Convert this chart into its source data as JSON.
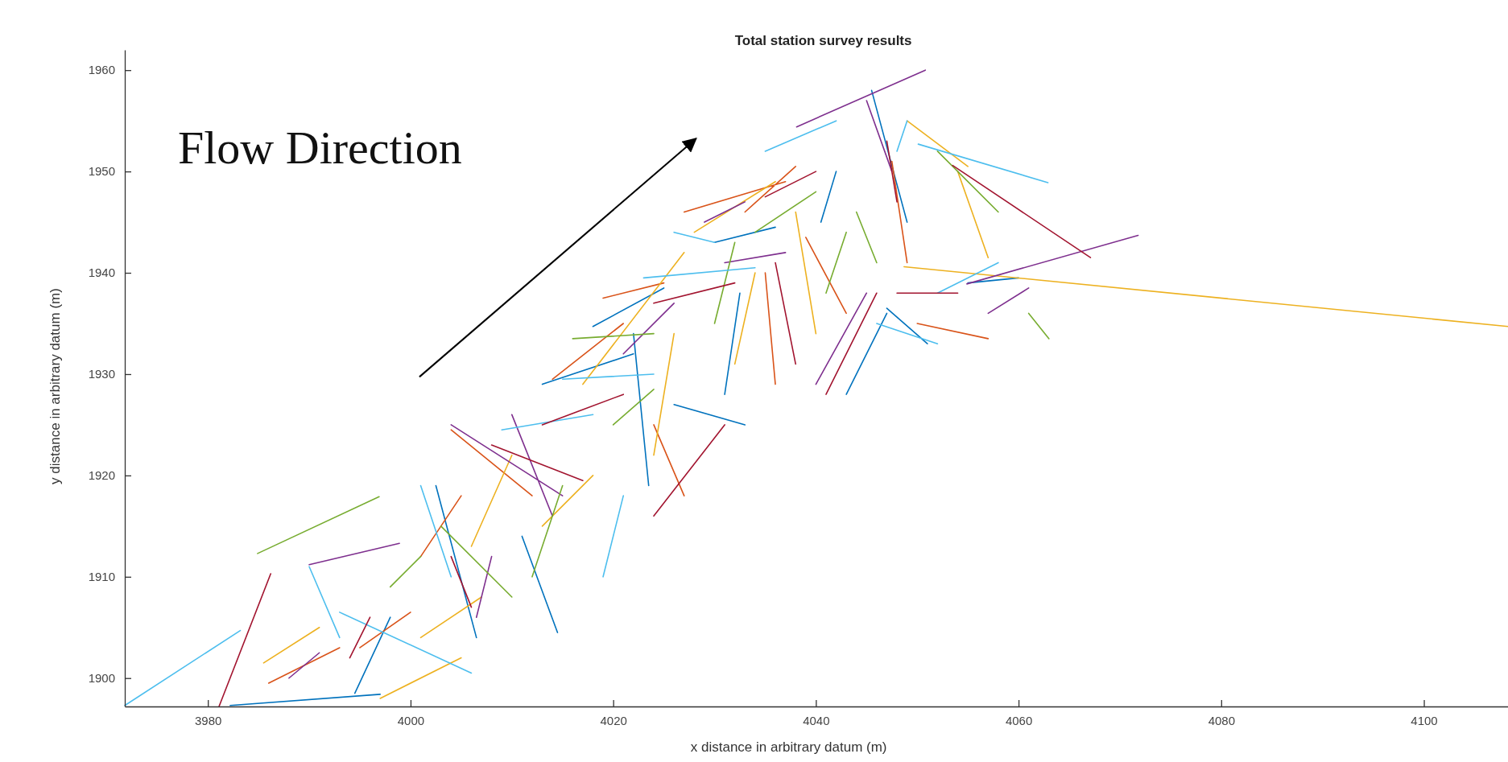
{
  "chart_data": {
    "type": "line",
    "title": "Total station survey results",
    "xlabel": "x distance in arbitrary datum (m)",
    "ylabel": "y distance in arbitrary datum (m)",
    "xlim": [
      3971.8,
      4108.3
    ],
    "xticks": [
      3980,
      4000,
      4020,
      4040,
      4060,
      4080,
      4100
    ],
    "ylim": [
      1897.2,
      1962
    ],
    "yticks": [
      1900,
      1910,
      1920,
      1930,
      1940,
      1950,
      1960
    ],
    "grid": false,
    "line_style": "solid",
    "marker": "none",
    "annotations": [
      "Flow Direction"
    ],
    "series": [
      {
        "color": "#0072bd",
        "x": [
          3982.2,
          3997,
          null,
          4002.5,
          4006.5,
          null,
          4011,
          4014.5,
          null,
          4022,
          4023.5,
          null,
          4018,
          4025,
          null,
          4030,
          4036,
          null,
          4031,
          4032.5,
          null,
          4043,
          4047,
          null,
          4042,
          4040.5,
          null,
          4045.5,
          4049,
          null,
          4047,
          4051,
          null,
          3994.5,
          3998,
          null,
          4055,
          4060,
          null,
          4013,
          4022,
          null,
          4026,
          4033
        ],
        "values": [
          1897.3,
          1898.4,
          null,
          1919,
          1904,
          null,
          1914,
          1904.5,
          null,
          1934,
          1919,
          null,
          1934.7,
          1938.5,
          null,
          1943,
          1944.5,
          null,
          1928,
          1938,
          null,
          1928,
          1936,
          null,
          1950,
          1945,
          null,
          1958,
          1945,
          null,
          1936.5,
          1933,
          null,
          1898.5,
          1906,
          null,
          1939,
          1939.5,
          null,
          1929,
          1932,
          null,
          1927,
          1925
        ]
      },
      {
        "color": "#d95319",
        "x": [
          3986,
          3993,
          null,
          4004,
          4012,
          null,
          4014,
          4021,
          null,
          4027,
          4037,
          null,
          4039,
          4043,
          null,
          4033,
          4038,
          null,
          4047.5,
          4049,
          null,
          4019,
          4025,
          null,
          4001,
          4005,
          null,
          3995,
          4000,
          null,
          4050,
          4057,
          null,
          4024,
          4027,
          null,
          4035,
          4036
        ],
        "values": [
          1899.5,
          1903,
          null,
          1924.5,
          1918,
          null,
          1929.5,
          1935,
          null,
          1946,
          1949,
          null,
          1943.5,
          1936,
          null,
          1946,
          1950.5,
          null,
          1951,
          1941,
          null,
          1937.5,
          1939,
          null,
          1912,
          1918,
          null,
          1903,
          1906.5,
          null,
          1935,
          1933.5,
          null,
          1925,
          1918,
          null,
          1940,
          1929
        ]
      },
      {
        "color": "#edb120",
        "x": [
          4048.7,
          4108.3,
          null,
          3997,
          4005,
          null,
          4006,
          4010,
          null,
          4017,
          4027,
          null,
          4028,
          4036,
          null,
          4038,
          4040,
          null,
          4049,
          4055,
          null,
          4013,
          4018,
          null,
          4024,
          4026,
          null,
          4057,
          4054,
          null,
          4001,
          4007,
          null,
          4032,
          4034,
          null,
          3985.5,
          3991
        ],
        "values": [
          1940.6,
          1934.7,
          null,
          1898,
          1902,
          null,
          1913,
          1922,
          null,
          1929,
          1942,
          null,
          1944,
          1949,
          null,
          1946,
          1934,
          null,
          1955,
          1950.5,
          null,
          1915,
          1920,
          null,
          1922,
          1934,
          null,
          1941.5,
          1950,
          null,
          1904,
          1908,
          null,
          1931,
          1940,
          null,
          1901.5,
          1905
        ]
      },
      {
        "color": "#7e2f8e",
        "x": [
          4038.1,
          4050.8,
          null,
          4054.9,
          4071.8,
          null,
          3990,
          3998.9,
          null,
          4004,
          4015,
          null,
          4010,
          4014,
          null,
          4029,
          4033,
          null,
          4021,
          4026,
          null,
          4040,
          4045,
          null,
          4045,
          4047.5,
          null,
          4057,
          4061,
          null,
          4006.5,
          4008,
          null,
          3988,
          3991,
          null,
          4031,
          4037
        ],
        "values": [
          1954.4,
          1960,
          null,
          1938.9,
          1943.7,
          null,
          1911.2,
          1913.3,
          null,
          1925,
          1918,
          null,
          1926,
          1916,
          null,
          1945,
          1947,
          null,
          1932,
          1937,
          null,
          1929,
          1938,
          null,
          1957,
          1950,
          null,
          1936,
          1938.5,
          null,
          1906,
          1912,
          null,
          1900,
          1902.5,
          null,
          1941,
          1942
        ]
      },
      {
        "color": "#77ac30",
        "x": [
          3984.9,
          3996.9,
          null,
          4003,
          4010,
          null,
          4016,
          4024,
          null,
          4034,
          4040,
          null,
          4044,
          4046,
          null,
          4052,
          4058,
          null,
          4061,
          4063,
          null,
          4012,
          4015,
          null,
          4020,
          4024,
          null,
          4030,
          4032,
          null,
          3998,
          4001,
          null,
          4041,
          4043
        ],
        "values": [
          1912.3,
          1917.9,
          null,
          1915,
          1908,
          null,
          1933.5,
          1934,
          null,
          1944,
          1948,
          null,
          1946,
          1941,
          null,
          1952,
          1946,
          null,
          1936,
          1933.5,
          null,
          1910,
          1919,
          null,
          1925,
          1928.5,
          null,
          1935,
          1943,
          null,
          1909,
          1912,
          null,
          1938,
          1944
        ]
      },
      {
        "color": "#4dbeee",
        "x": [
          3971.8,
          3983.2,
          null,
          4050.1,
          4062.9,
          null,
          3993,
          4006,
          null,
          4009,
          4018,
          null,
          4015,
          4024,
          null,
          4023,
          4034,
          null,
          4035,
          4042,
          null,
          4048,
          4049,
          null,
          4052,
          4058,
          null,
          4019,
          4021,
          null,
          4001,
          4004,
          null,
          4046,
          4052,
          null,
          4026,
          4030,
          null,
          3990,
          3993
        ],
        "values": [
          1897.3,
          1904.7,
          null,
          1952.7,
          1948.9,
          null,
          1906.5,
          1900.5,
          null,
          1924.5,
          1926,
          null,
          1929.5,
          1930,
          null,
          1939.5,
          1940.5,
          null,
          1952,
          1955,
          null,
          1952,
          1955,
          null,
          1938,
          1941,
          null,
          1910,
          1918,
          null,
          1919,
          1910,
          null,
          1935,
          1933,
          null,
          1944,
          1943,
          null,
          1911,
          1904
        ]
      },
      {
        "color": "#a2142f",
        "x": [
          3981.1,
          3986.2,
          null,
          4053.5,
          4067.1,
          null,
          4008,
          4017,
          null,
          4013,
          4021,
          null,
          4024,
          4032,
          null,
          4024,
          4031,
          null,
          4041,
          4046,
          null,
          4035,
          4040,
          null,
          4047,
          4048,
          null,
          4004,
          4006,
          null,
          3994,
          3996,
          null,
          4048,
          4054,
          null,
          4036,
          4038
        ],
        "values": [
          1897.2,
          1910.3,
          null,
          1950.6,
          1941.5,
          null,
          1923,
          1919.5,
          null,
          1925,
          1928,
          null,
          1937,
          1939,
          null,
          1916,
          1925,
          null,
          1928,
          1938,
          null,
          1947.5,
          1950,
          null,
          1953,
          1947,
          null,
          1912,
          1907,
          null,
          1902,
          1906,
          null,
          1938,
          1938,
          null,
          1941,
          1931
        ]
      }
    ]
  }
}
